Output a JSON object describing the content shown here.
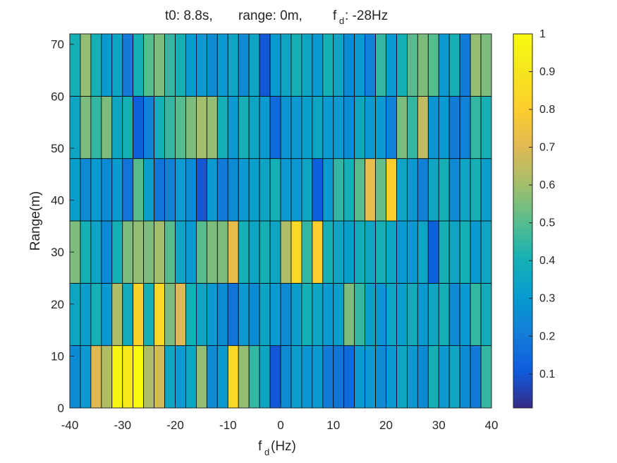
{
  "chart_data": {
    "type": "heatmap",
    "title_parts": {
      "t0": "t0: 8.8s,",
      "range": "range: 0m,",
      "fd_prefix": "f",
      "fd_sub": "d",
      "fd_value": ": -28Hz"
    },
    "xlabel_main": "f",
    "xlabel_sub": "d",
    "xlabel_rest": "(Hz)",
    "ylabel": "Range(m)",
    "xlim": [
      -40,
      40
    ],
    "ylim": [
      0,
      72
    ],
    "x_edges_start": -40,
    "x_bin_width": 2,
    "y_edges": [
      0,
      12,
      24,
      36,
      48,
      60,
      72
    ],
    "xticks": [
      -40,
      -30,
      -20,
      -10,
      0,
      10,
      20,
      30,
      40
    ],
    "yticks": [
      0,
      10,
      20,
      30,
      40,
      50,
      60,
      70
    ],
    "colorbar": {
      "min": 0.01,
      "max": 1.0,
      "ticks": [
        0.1,
        0.2,
        0.3,
        0.4,
        0.5,
        0.6,
        0.7,
        0.8,
        0.9,
        1
      ],
      "tick_labels": [
        "0.1",
        "0.2",
        "0.3",
        "0.4",
        "0.5",
        "0.6",
        "0.7",
        "0.8",
        "0.9",
        "1"
      ],
      "colormap": "parula"
    },
    "rows": [
      {
        "range_bin": "0-12",
        "values": [
          0.25,
          0.3,
          0.7,
          0.62,
          0.97,
          0.92,
          0.99,
          0.62,
          0.68,
          0.35,
          0.3,
          0.35,
          0.58,
          0.25,
          0.3,
          0.85,
          0.58,
          0.45,
          0.35,
          0.1,
          0.25,
          0.32,
          0.28,
          0.3,
          0.2,
          0.18,
          0.15,
          0.3,
          0.3,
          0.25,
          0.3,
          0.35,
          0.3,
          0.25,
          0.4,
          0.3,
          0.35,
          0.25,
          0.2,
          0.45
        ]
      },
      {
        "range_bin": "12-24",
        "values": [
          0.35,
          0.32,
          0.4,
          0.3,
          0.62,
          0.38,
          0.82,
          0.4,
          0.85,
          0.55,
          0.7,
          0.4,
          0.35,
          0.3,
          0.25,
          0.18,
          0.3,
          0.25,
          0.35,
          0.3,
          0.25,
          0.32,
          0.4,
          0.35,
          0.3,
          0.32,
          0.55,
          0.45,
          0.32,
          0.28,
          0.35,
          0.32,
          0.38,
          0.3,
          0.35,
          0.4,
          0.25,
          0.3,
          0.45,
          0.38
        ]
      },
      {
        "range_bin": "24-36",
        "values": [
          0.55,
          0.4,
          0.35,
          0.25,
          0.4,
          0.55,
          0.58,
          0.55,
          0.6,
          0.5,
          0.35,
          0.3,
          0.5,
          0.55,
          0.55,
          0.72,
          0.4,
          0.35,
          0.4,
          0.35,
          0.62,
          0.85,
          0.45,
          0.8,
          0.4,
          0.35,
          0.32,
          0.38,
          0.35,
          0.4,
          0.35,
          0.3,
          0.3,
          0.35,
          0.12,
          0.4,
          0.35,
          0.4,
          0.3,
          0.35
        ]
      },
      {
        "range_bin": "36-48",
        "values": [
          0.32,
          0.25,
          0.3,
          0.25,
          0.3,
          0.18,
          0.5,
          0.32,
          0.18,
          0.22,
          0.3,
          0.25,
          0.1,
          0.3,
          0.2,
          0.25,
          0.3,
          0.32,
          0.35,
          0.4,
          0.3,
          0.3,
          0.35,
          0.12,
          0.3,
          0.45,
          0.4,
          0.5,
          0.72,
          0.52,
          0.8,
          0.35,
          0.3,
          0.22,
          0.35,
          0.4,
          0.25,
          0.35,
          0.4,
          0.32
        ]
      },
      {
        "range_bin": "48-60",
        "values": [
          0.35,
          0.55,
          0.45,
          0.55,
          0.35,
          0.4,
          0.12,
          0.22,
          0.4,
          0.45,
          0.5,
          0.55,
          0.6,
          0.58,
          0.4,
          0.3,
          0.4,
          0.35,
          0.3,
          0.15,
          0.28,
          0.3,
          0.32,
          0.35,
          0.3,
          0.3,
          0.25,
          0.35,
          0.3,
          0.3,
          0.22,
          0.55,
          0.45,
          0.65,
          0.28,
          0.3,
          0.2,
          0.22,
          0.45,
          0.4
        ]
      },
      {
        "range_bin": "60-72",
        "values": [
          0.4,
          0.58,
          0.4,
          0.3,
          0.35,
          0.2,
          0.4,
          0.5,
          0.55,
          0.45,
          0.4,
          0.3,
          0.3,
          0.25,
          0.3,
          0.35,
          0.25,
          0.35,
          0.1,
          0.3,
          0.35,
          0.4,
          0.35,
          0.3,
          0.4,
          0.35,
          0.25,
          0.3,
          0.22,
          0.45,
          0.3,
          0.4,
          0.5,
          0.55,
          0.5,
          0.3,
          0.4,
          0.2,
          0.58,
          0.55
        ]
      }
    ]
  }
}
